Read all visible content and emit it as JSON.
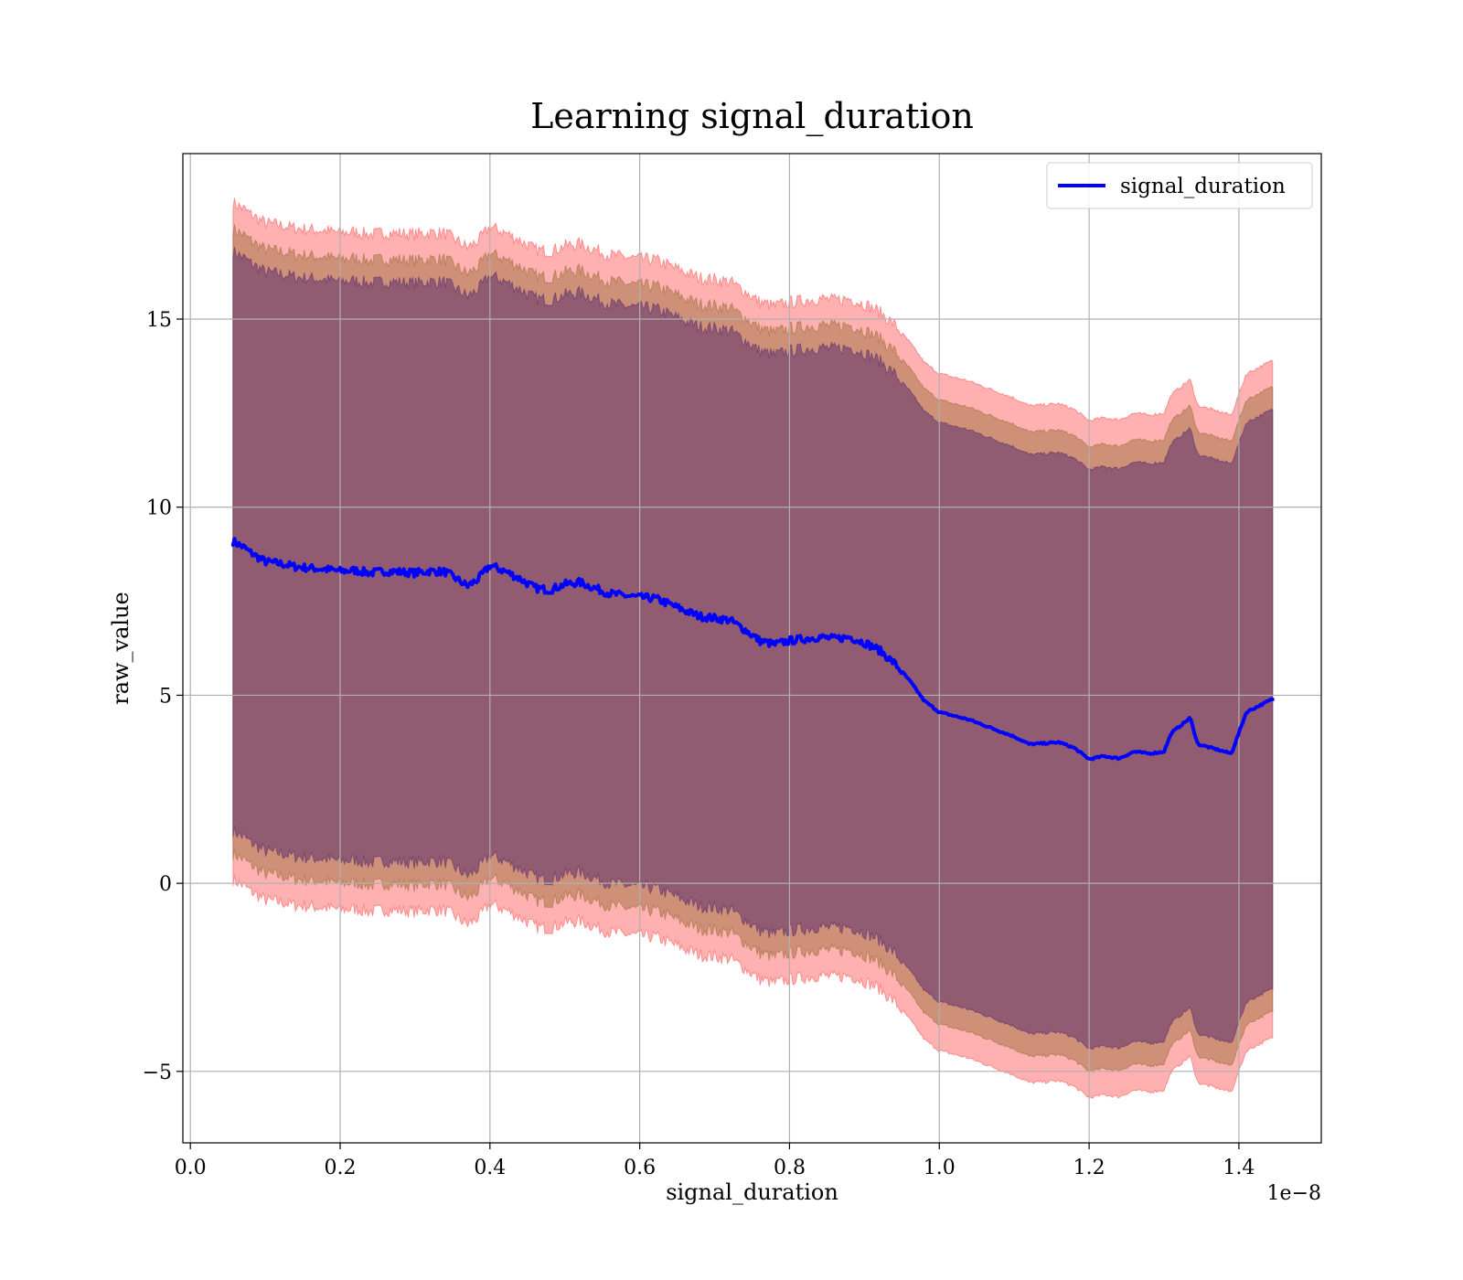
{
  "chart_data": {
    "type": "line",
    "title": "Learning signal_duration",
    "xlabel": "signal_duration",
    "ylabel": "raw_value",
    "x_offset_label": "1e−8",
    "xlim": [
      -0.01,
      1.51
    ],
    "ylim": [
      -6.9,
      19.4
    ],
    "xticks": [
      0.0,
      0.2,
      0.4,
      0.6,
      0.8,
      1.0,
      1.2,
      1.4
    ],
    "xtick_labels": [
      "0.0",
      "0.2",
      "0.4",
      "0.6",
      "0.8",
      "1.0",
      "1.2",
      "1.4"
    ],
    "yticks": [
      -5,
      0,
      5,
      10,
      15
    ],
    "ytick_labels": [
      "−5",
      "0",
      "5",
      "10",
      "15"
    ],
    "grid": true,
    "legend_position": "top-right",
    "x": [
      0.057,
      0.065,
      0.07,
      0.08,
      0.1,
      0.12,
      0.14,
      0.16,
      0.18,
      0.2,
      0.22,
      0.24,
      0.26,
      0.28,
      0.3,
      0.32,
      0.34,
      0.355,
      0.37,
      0.385,
      0.4,
      0.42,
      0.44,
      0.46,
      0.48,
      0.5,
      0.52,
      0.54,
      0.56,
      0.58,
      0.6,
      0.62,
      0.64,
      0.66,
      0.68,
      0.7,
      0.72,
      0.74,
      0.76,
      0.78,
      0.8,
      0.82,
      0.84,
      0.86,
      0.88,
      0.9,
      0.92,
      0.94,
      0.96,
      0.98,
      1.0,
      1.02,
      1.04,
      1.06,
      1.08,
      1.1,
      1.12,
      1.14,
      1.16,
      1.18,
      1.2,
      1.22,
      1.24,
      1.26,
      1.28,
      1.3,
      1.31,
      1.335,
      1.345,
      1.39,
      1.41,
      1.445
    ],
    "series": [
      {
        "name": "signal_duration",
        "color": "#0000ff",
        "values": [
          9.1,
          9.0,
          8.95,
          8.8,
          8.55,
          8.5,
          8.42,
          8.38,
          8.35,
          8.3,
          8.32,
          8.25,
          8.3,
          8.28,
          8.25,
          8.3,
          8.28,
          8.1,
          7.9,
          8.1,
          8.45,
          8.3,
          8.1,
          7.85,
          7.8,
          7.95,
          8.0,
          7.85,
          7.7,
          7.65,
          7.6,
          7.58,
          7.42,
          7.25,
          7.1,
          7.05,
          7.0,
          6.75,
          6.45,
          6.35,
          6.45,
          6.5,
          6.55,
          6.5,
          6.55,
          6.4,
          6.2,
          5.85,
          5.4,
          4.85,
          4.55,
          4.45,
          4.35,
          4.2,
          4.05,
          3.9,
          3.7,
          3.72,
          3.75,
          3.6,
          3.3,
          3.38,
          3.32,
          3.5,
          3.45,
          3.5,
          4.0,
          4.4,
          3.7,
          3.45,
          4.55,
          4.9
        ]
      }
    ],
    "bands": [
      {
        "name": "band-outer",
        "color": "#ff5a5a",
        "opacity": 0.48,
        "offset": 9.0
      },
      {
        "name": "band-middle",
        "color": "#a07040",
        "opacity": 0.5,
        "offset": 8.3
      },
      {
        "name": "band-inner",
        "color": "#6a3a70",
        "opacity": 0.62,
        "offset": 7.7
      }
    ]
  }
}
